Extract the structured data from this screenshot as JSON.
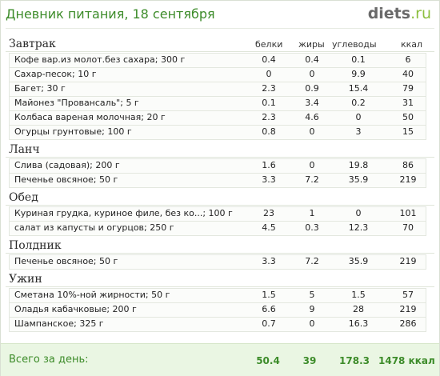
{
  "header": {
    "title": "Дневник питания, 18 сентября",
    "logo_main": "diets",
    "logo_tld": ".ru"
  },
  "columns": {
    "protein": "белки",
    "fat": "жиры",
    "carbs": "углеводы",
    "kcal": "ккал"
  },
  "sections": [
    {
      "title": "Завтрак",
      "rows": [
        {
          "name": "Кофе вар.из молот.без сахара; 300 г",
          "protein": "0.4",
          "fat": "0.4",
          "carbs": "0.1",
          "kcal": "6"
        },
        {
          "name": "Сахар-песок; 10 г",
          "protein": "0",
          "fat": "0",
          "carbs": "9.9",
          "kcal": "40"
        },
        {
          "name": "Багет; 30 г",
          "protein": "2.3",
          "fat": "0.9",
          "carbs": "15.4",
          "kcal": "79"
        },
        {
          "name": "Майонез \"Провансаль\"; 5 г",
          "protein": "0.1",
          "fat": "3.4",
          "carbs": "0.2",
          "kcal": "31"
        },
        {
          "name": "Колбаса вареная молочная; 20 г",
          "protein": "2.3",
          "fat": "4.6",
          "carbs": "0",
          "kcal": "50"
        },
        {
          "name": "Огурцы грунтовые; 100 г",
          "protein": "0.8",
          "fat": "0",
          "carbs": "3",
          "kcal": "15"
        }
      ]
    },
    {
      "title": "Ланч",
      "rows": [
        {
          "name": "Слива (садовая); 200 г",
          "protein": "1.6",
          "fat": "0",
          "carbs": "19.8",
          "kcal": "86"
        },
        {
          "name": "Печенье овсяное; 50 г",
          "protein": "3.3",
          "fat": "7.2",
          "carbs": "35.9",
          "kcal": "219"
        }
      ]
    },
    {
      "title": "Обед",
      "rows": [
        {
          "name": "Куриная грудка, куриное филе, без ко...; 100 г",
          "protein": "23",
          "fat": "1",
          "carbs": "0",
          "kcal": "101"
        },
        {
          "name": "салат из капусты и огурцов; 250 г",
          "protein": "4.5",
          "fat": "0.3",
          "carbs": "12.3",
          "kcal": "70"
        }
      ]
    },
    {
      "title": "Полдник",
      "rows": [
        {
          "name": "Печенье овсяное; 50 г",
          "protein": "3.3",
          "fat": "7.2",
          "carbs": "35.9",
          "kcal": "219"
        }
      ]
    },
    {
      "title": "Ужин",
      "rows": [
        {
          "name": "Сметана 10%-ной жирности; 50 г",
          "protein": "1.5",
          "fat": "5",
          "carbs": "1.5",
          "kcal": "57"
        },
        {
          "name": "Оладья кабачковые; 200 г",
          "protein": "6.6",
          "fat": "9",
          "carbs": "28",
          "kcal": "219"
        },
        {
          "name": "Шампанское; 325 г",
          "protein": "0.7",
          "fat": "0",
          "carbs": "16.3",
          "kcal": "286"
        }
      ]
    }
  ],
  "footer": {
    "label": "Всего за день:",
    "protein": "50.4",
    "fat": "39",
    "carbs": "178.3",
    "kcal": "1478 ккал"
  },
  "colors": {
    "accent_green": "#3d8c2a",
    "logo_green": "#8cbf3f",
    "footer_bg": "#eaf6e3"
  }
}
